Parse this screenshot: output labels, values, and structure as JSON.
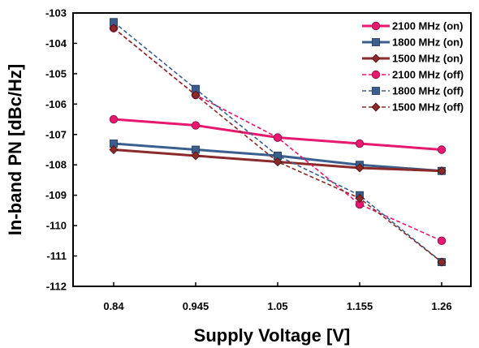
{
  "chart_data": {
    "type": "line",
    "title": "",
    "xlabel": "Supply Voltage [V]",
    "ylabel": "In-band PN [dBc/Hz]",
    "x": [
      0.84,
      0.945,
      1.05,
      1.155,
      1.26
    ],
    "x_tick_labels": [
      "0.84",
      "0.945",
      "1.05",
      "1.155",
      "1.26"
    ],
    "ylim": [
      -112,
      -103
    ],
    "y_ticks": [
      -103,
      -104,
      -105,
      -106,
      -107,
      -108,
      -109,
      -110,
      -111,
      -112
    ],
    "y_tick_labels": [
      "-103",
      "-104",
      "-105",
      "-106",
      "-107",
      "-108",
      "-109",
      "-110",
      "-111",
      "-112"
    ],
    "grid": false,
    "legend_position": "top-right",
    "series": [
      {
        "name": "2100 MHz (on)",
        "values": [
          -106.5,
          -106.7,
          -107.1,
          -107.3,
          -107.5
        ],
        "color": "#e8176f",
        "marker": "circle",
        "dashed": false
      },
      {
        "name": "1800 MHz (on)",
        "values": [
          -107.3,
          -107.5,
          -107.7,
          -108.0,
          -108.2
        ],
        "color": "#3a5f8f",
        "marker": "square",
        "dashed": false
      },
      {
        "name": "1500 MHz (on)",
        "values": [
          -107.5,
          -107.7,
          -107.9,
          -108.1,
          -108.2
        ],
        "color": "#8b2a2a",
        "marker": "diamond",
        "dashed": false
      },
      {
        "name": "2100 MHz (off)",
        "values": [
          -103.5,
          -105.7,
          -107.1,
          -109.3,
          -110.5
        ],
        "color": "#e8176f",
        "marker": "circle",
        "dashed": true
      },
      {
        "name": "1800 MHz (off)",
        "values": [
          -103.3,
          -105.5,
          -107.7,
          -109.0,
          -111.2
        ],
        "color": "#3a5f8f",
        "marker": "square",
        "dashed": true
      },
      {
        "name": "1500 MHz (off)",
        "values": [
          -103.5,
          -105.7,
          -107.9,
          -109.1,
          -111.2
        ],
        "color": "#8b2a2a",
        "marker": "diamond",
        "dashed": true
      }
    ]
  }
}
